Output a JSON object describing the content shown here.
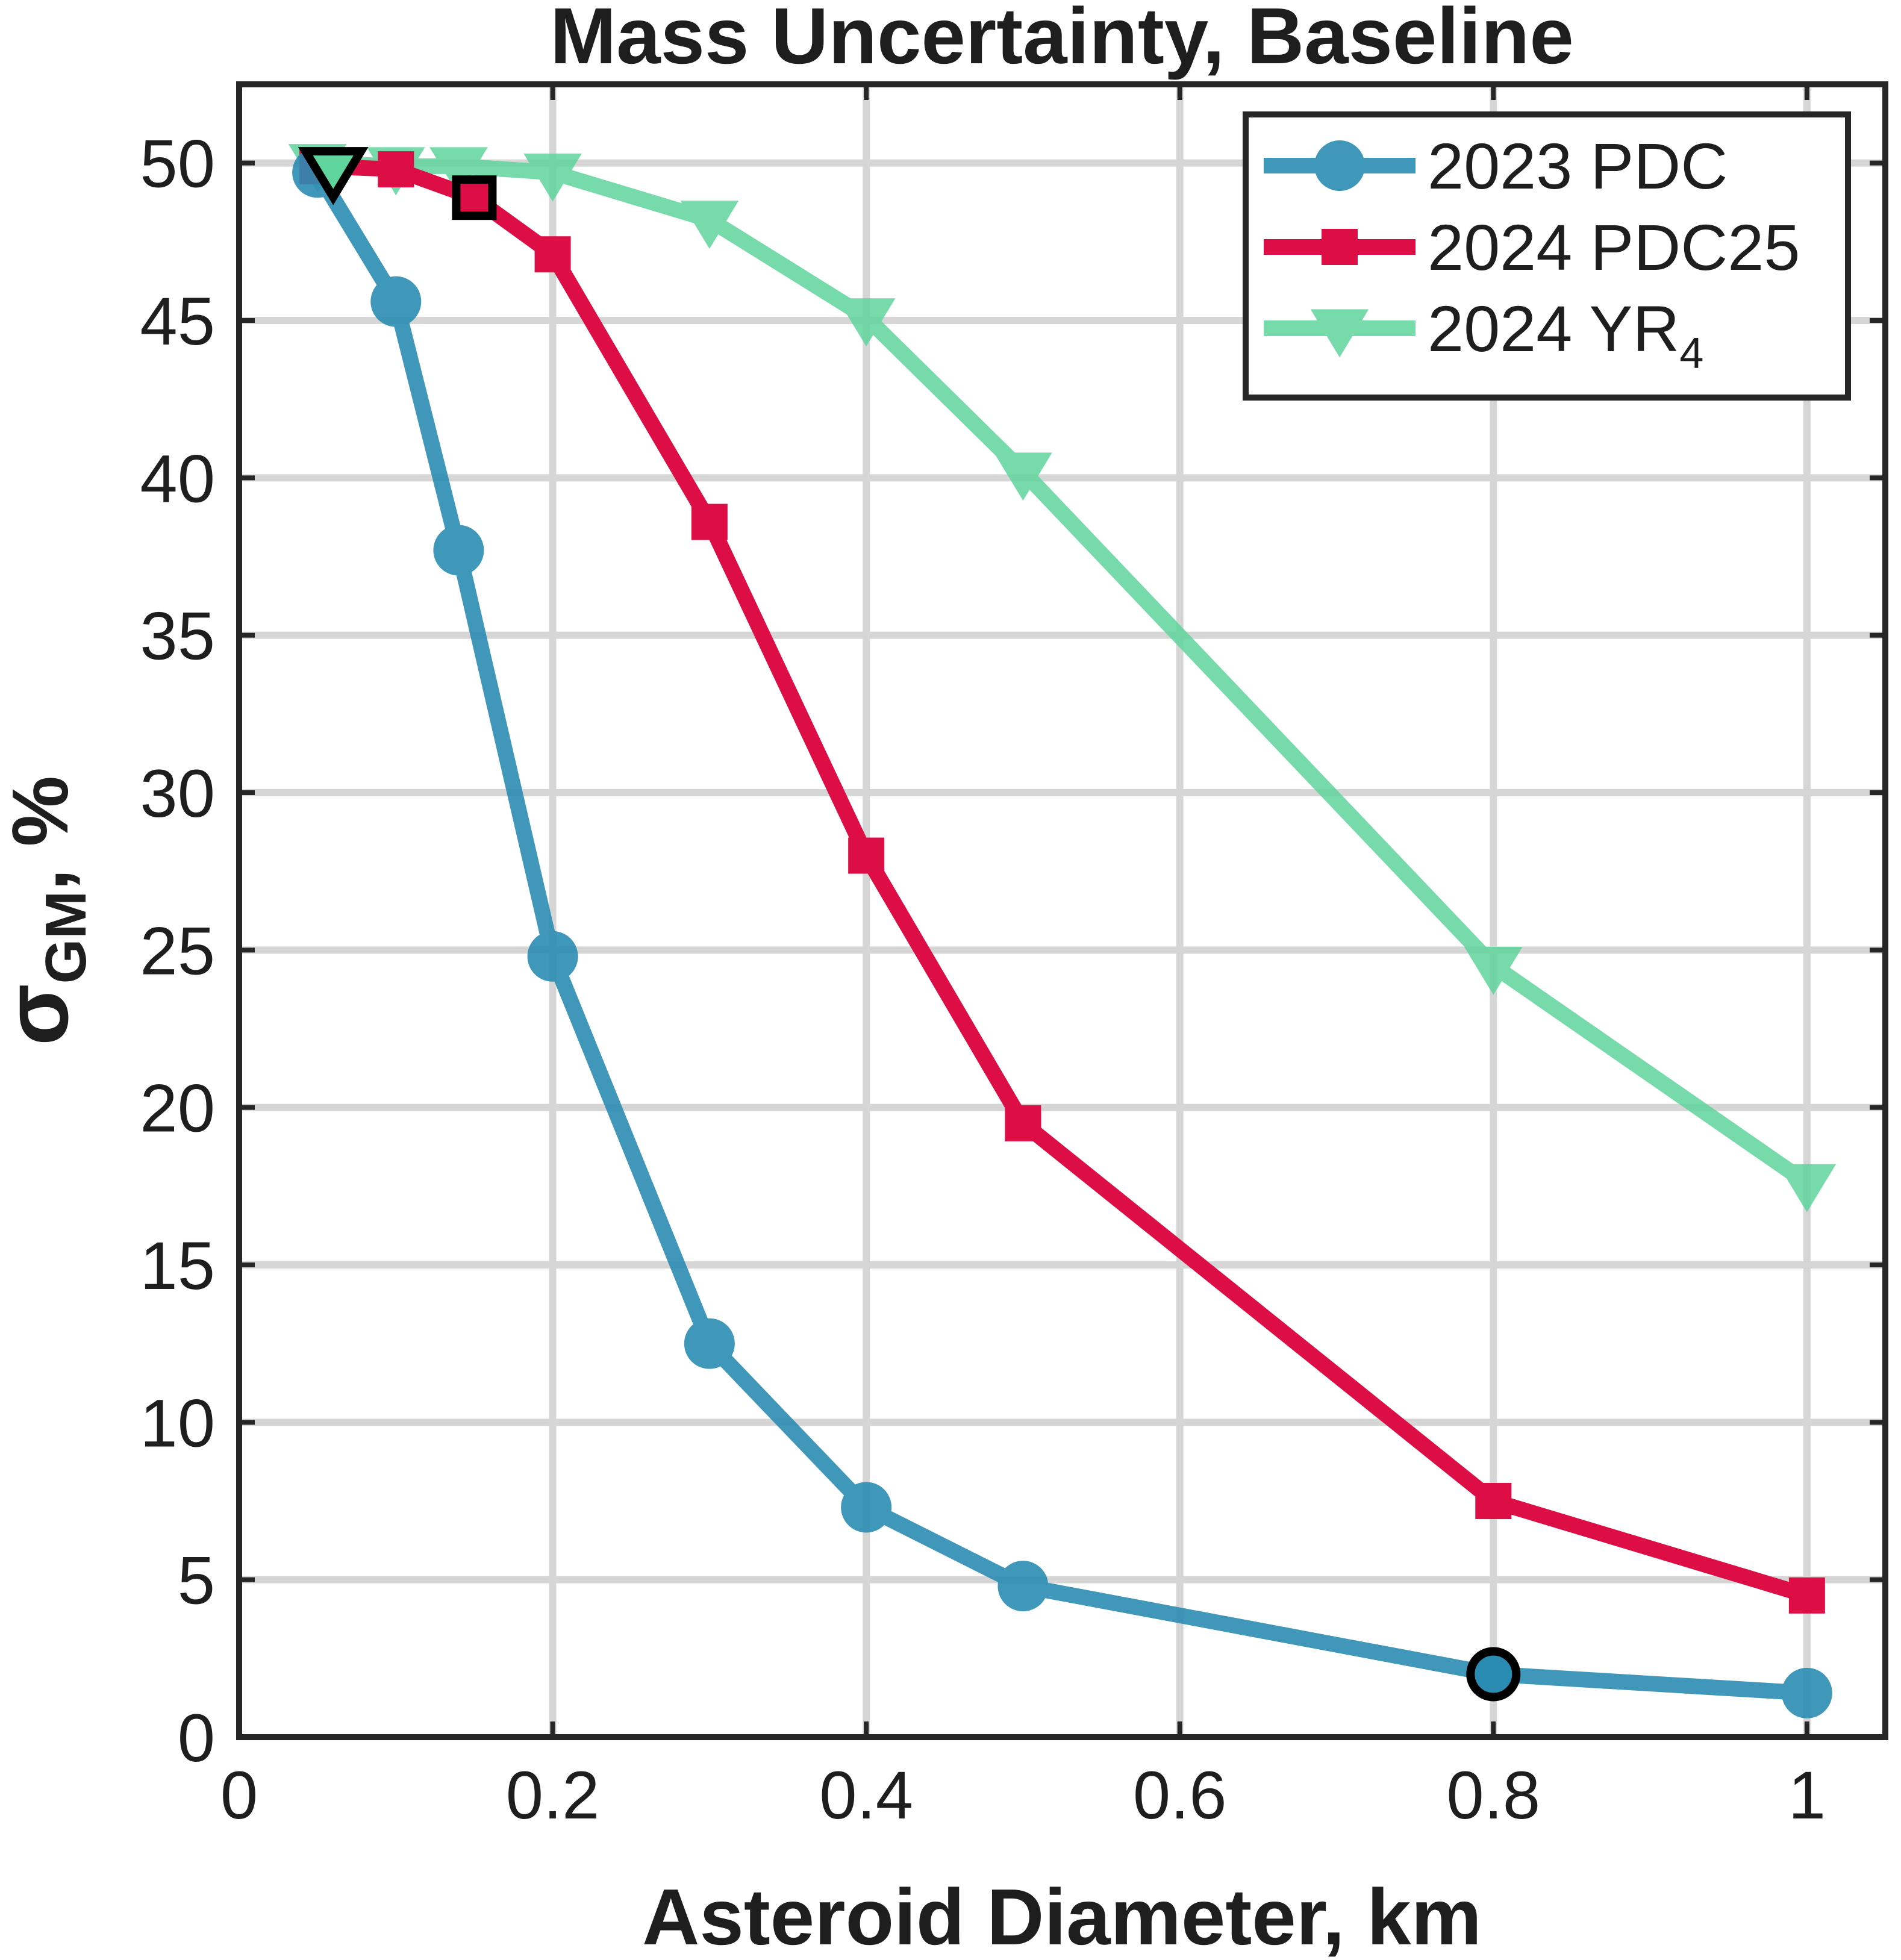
{
  "chart_data": {
    "type": "line",
    "title": "Mass Uncertainty, Baseline",
    "xlabel": "Asteroid Diameter, km",
    "ylabel": {
      "symbol": "σ",
      "subscript": "GM",
      "suffix": ",  %"
    },
    "xlim": [
      0,
      1.05
    ],
    "ylim": [
      0,
      52.5
    ],
    "xticks": [
      0,
      0.2,
      0.4,
      0.6,
      0.8,
      1
    ],
    "xtick_labels": [
      "0",
      "0.2",
      "0.4",
      "0.6",
      "0.8",
      "1"
    ],
    "yticks": [
      0,
      5,
      10,
      15,
      20,
      25,
      30,
      35,
      40,
      45,
      50
    ],
    "ytick_labels": [
      "0",
      "5",
      "10",
      "15",
      "20",
      "25",
      "30",
      "35",
      "40",
      "45",
      "50"
    ],
    "grid": true,
    "legend_position": "top-right",
    "series": [
      {
        "name": "2023 PDC",
        "color": "#2b8cb3",
        "marker": "circle",
        "x": [
          0.05,
          0.1,
          0.14,
          0.2,
          0.3,
          0.4,
          0.5,
          0.8,
          1.0
        ],
        "y": [
          49.7,
          45.6,
          37.7,
          24.8,
          12.5,
          7.3,
          4.8,
          2.0,
          1.4
        ],
        "highlight_x": 0.8,
        "highlight_y": 2.0
      },
      {
        "name": "2024 PDC25",
        "color": "#dc0e45",
        "marker": "square",
        "x": [
          0.05,
          0.1,
          0.15,
          0.2,
          0.3,
          0.4,
          0.5,
          0.8,
          1.0
        ],
        "y": [
          49.9,
          49.8,
          48.9,
          47.1,
          38.6,
          28.0,
          19.5,
          7.5,
          4.5
        ],
        "highlight_x": 0.15,
        "highlight_y": 48.9
      },
      {
        "name": "2024  YR",
        "name_subscript": "4",
        "color": "#5fd49c",
        "marker": "triangle-down",
        "x": [
          0.05,
          0.1,
          0.14,
          0.2,
          0.3,
          0.4,
          0.5,
          0.8,
          1.0
        ],
        "y": [
          50.0,
          49.9,
          49.9,
          49.7,
          48.2,
          45.1,
          40.2,
          24.5,
          17.6
        ],
        "highlight_x": 0.06,
        "highlight_y": 49.8
      }
    ]
  }
}
